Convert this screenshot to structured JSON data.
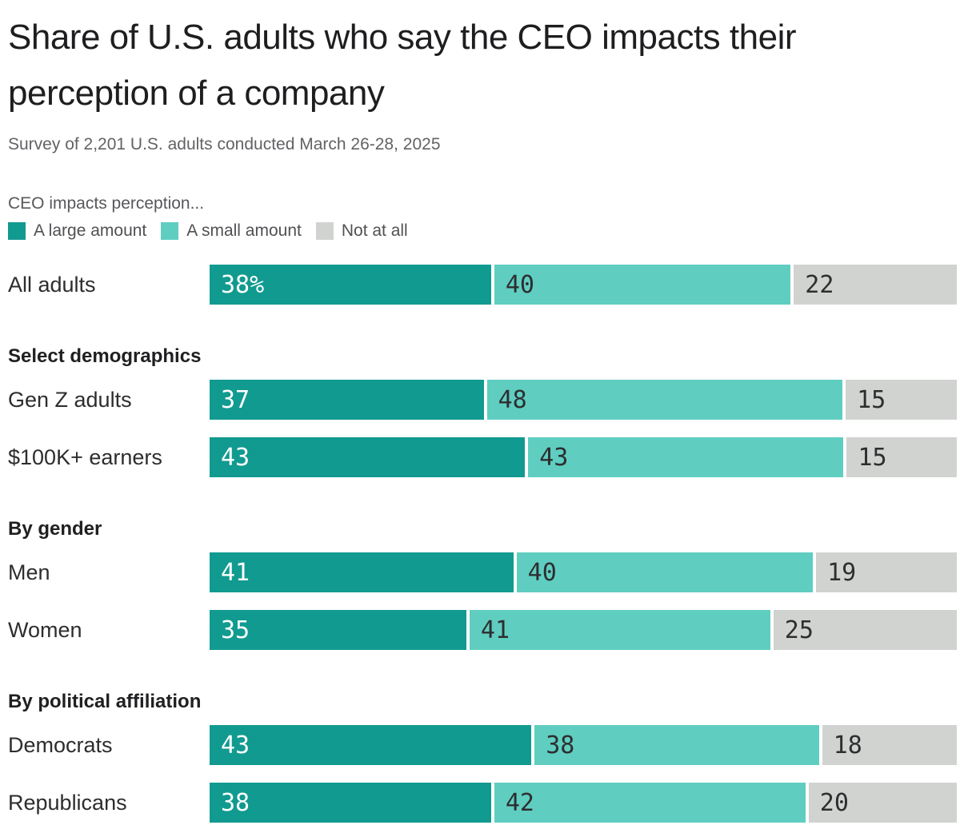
{
  "chart": {
    "title": "Share of U.S. adults who say the CEO impacts their perception of a company",
    "subtitle": "Survey of 2,201 U.S. adults conducted March 26-28, 2025",
    "legend_title": "CEO impacts perception..."
  },
  "chart_data": {
    "type": "bar",
    "orientation": "horizontal",
    "stacked": true,
    "unit": "percent",
    "xlim": [
      0,
      100
    ],
    "grid": false,
    "legend_position": "top-left",
    "series_legend": [
      {
        "name": "A large amount",
        "color": "#119a90",
        "value_text_color": "#ffffff"
      },
      {
        "name": "A small amount",
        "color": "#5fcec1",
        "value_text_color": "#2e2e30"
      },
      {
        "name": "Not at all",
        "color": "#d1d3d1",
        "value_text_color": "#2e2e30"
      }
    ],
    "sections": [
      {
        "header": "",
        "rows": [
          {
            "label": "All adults",
            "values": [
              38,
              40,
              22
            ],
            "value_labels": [
              "38%",
              "40",
              "22"
            ]
          }
        ]
      },
      {
        "header": "Select demographics",
        "rows": [
          {
            "label": "Gen Z adults",
            "values": [
              37,
              48,
              15
            ],
            "value_labels": [
              "37",
              "48",
              "15"
            ]
          },
          {
            "label": "$100K+ earners",
            "values": [
              43,
              43,
              15
            ],
            "value_labels": [
              "43",
              "43",
              "15"
            ]
          }
        ]
      },
      {
        "header": "By gender",
        "rows": [
          {
            "label": "Men",
            "values": [
              41,
              40,
              19
            ],
            "value_labels": [
              "41",
              "40",
              "19"
            ]
          },
          {
            "label": "Women",
            "values": [
              35,
              41,
              25
            ],
            "value_labels": [
              "35",
              "41",
              "25"
            ]
          }
        ]
      },
      {
        "header": "By political affiliation",
        "rows": [
          {
            "label": "Democrats",
            "values": [
              43,
              38,
              18
            ],
            "value_labels": [
              "43",
              "38",
              "18"
            ]
          },
          {
            "label": "Republicans",
            "values": [
              38,
              42,
              20
            ],
            "value_labels": [
              "38",
              "42",
              "20"
            ]
          }
        ]
      }
    ]
  }
}
